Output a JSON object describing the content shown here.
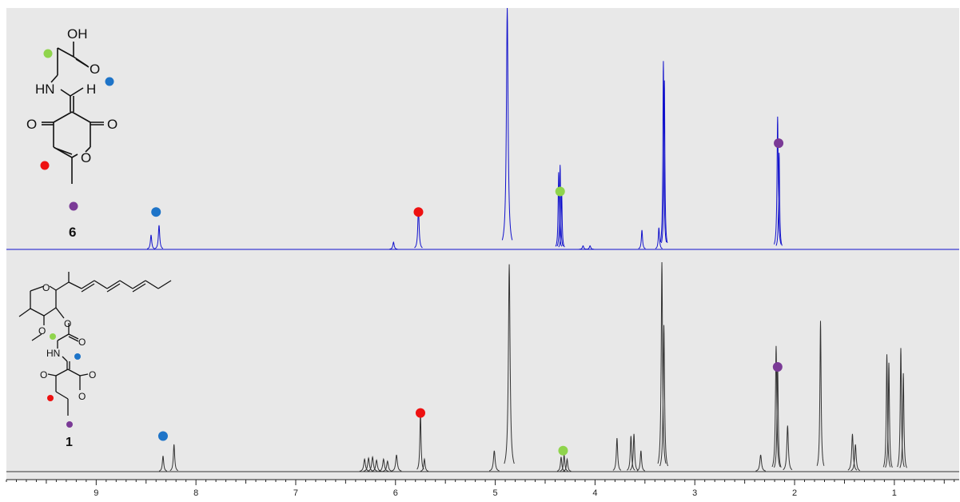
{
  "chart_data": {
    "type": "line",
    "x_axis": {
      "reversed": true,
      "range": [
        9.9,
        0.35
      ],
      "ticks": [
        9,
        8,
        7,
        6,
        5,
        4,
        3,
        2,
        1
      ],
      "tick_labels": [
        "9",
        "8",
        "7",
        "6",
        "5",
        "4",
        "3",
        "2",
        "1"
      ],
      "label": ""
    },
    "grid": false,
    "panels": [
      {
        "compound_label": "6",
        "color": "#1111cc",
        "peaks": [
          {
            "x": 8.45,
            "h": 0.06,
            "w": 0.008
          },
          {
            "x": 8.37,
            "h": 0.1,
            "w": 0.008
          },
          {
            "x": 6.02,
            "h": 0.03,
            "w": 0.008
          },
          {
            "x": 5.77,
            "h": 0.17,
            "w": 0.008
          },
          {
            "x": 4.88,
            "h": 1.0,
            "w": 0.01
          },
          {
            "x": 4.365,
            "h": 0.32,
            "w": 0.006
          },
          {
            "x": 4.35,
            "h": 0.35,
            "w": 0.006
          },
          {
            "x": 4.335,
            "h": 0.25,
            "w": 0.006
          },
          {
            "x": 3.53,
            "h": 0.08,
            "w": 0.007
          },
          {
            "x": 3.36,
            "h": 0.09,
            "w": 0.007
          },
          {
            "x": 3.315,
            "h": 0.78,
            "w": 0.006
          },
          {
            "x": 3.305,
            "h": 0.7,
            "w": 0.006
          },
          {
            "x": 2.17,
            "h": 0.55,
            "w": 0.007
          },
          {
            "x": 2.155,
            "h": 0.4,
            "w": 0.006
          },
          {
            "x": 4.12,
            "h": 0.015,
            "w": 0.008
          },
          {
            "x": 4.05,
            "h": 0.015,
            "w": 0.008
          }
        ],
        "markers": [
          {
            "x": 8.4,
            "level": 0.155,
            "color": "#1e74c8"
          },
          {
            "x": 5.77,
            "level": 0.155,
            "color": "#ee1111"
          },
          {
            "x": 4.35,
            "level": 0.24,
            "color": "#8fd44c"
          },
          {
            "x": 2.16,
            "level": 0.44,
            "color": "#7a3a96"
          }
        ]
      },
      {
        "compound_label": "1",
        "color": "#333333",
        "peaks": [
          {
            "x": 8.33,
            "h": 0.075,
            "w": 0.008
          },
          {
            "x": 8.22,
            "h": 0.13,
            "w": 0.008
          },
          {
            "x": 6.31,
            "h": 0.06,
            "w": 0.01
          },
          {
            "x": 6.27,
            "h": 0.065,
            "w": 0.01
          },
          {
            "x": 6.23,
            "h": 0.07,
            "w": 0.01
          },
          {
            "x": 6.19,
            "h": 0.055,
            "w": 0.01
          },
          {
            "x": 6.12,
            "h": 0.06,
            "w": 0.01
          },
          {
            "x": 6.08,
            "h": 0.05,
            "w": 0.01
          },
          {
            "x": 5.99,
            "h": 0.08,
            "w": 0.01
          },
          {
            "x": 5.75,
            "h": 0.28,
            "w": 0.007
          },
          {
            "x": 5.71,
            "h": 0.06,
            "w": 0.008
          },
          {
            "x": 5.01,
            "h": 0.1,
            "w": 0.01
          },
          {
            "x": 4.86,
            "h": 0.99,
            "w": 0.01
          },
          {
            "x": 4.34,
            "h": 0.07,
            "w": 0.008
          },
          {
            "x": 4.31,
            "h": 0.08,
            "w": 0.008
          },
          {
            "x": 4.28,
            "h": 0.06,
            "w": 0.008
          },
          {
            "x": 3.78,
            "h": 0.16,
            "w": 0.008
          },
          {
            "x": 3.64,
            "h": 0.17,
            "w": 0.008
          },
          {
            "x": 3.61,
            "h": 0.18,
            "w": 0.008
          },
          {
            "x": 3.54,
            "h": 0.1,
            "w": 0.008
          },
          {
            "x": 3.33,
            "h": 1.0,
            "w": 0.008
          },
          {
            "x": 3.31,
            "h": 0.7,
            "w": 0.008
          },
          {
            "x": 2.34,
            "h": 0.08,
            "w": 0.01
          },
          {
            "x": 2.185,
            "h": 0.6,
            "w": 0.008
          },
          {
            "x": 2.17,
            "h": 0.52,
            "w": 0.007
          },
          {
            "x": 2.07,
            "h": 0.22,
            "w": 0.009
          },
          {
            "x": 1.74,
            "h": 0.72,
            "w": 0.007
          },
          {
            "x": 1.42,
            "h": 0.18,
            "w": 0.009
          },
          {
            "x": 1.39,
            "h": 0.13,
            "w": 0.009
          },
          {
            "x": 1.075,
            "h": 0.56,
            "w": 0.007
          },
          {
            "x": 1.055,
            "h": 0.52,
            "w": 0.007
          },
          {
            "x": 0.935,
            "h": 0.59,
            "w": 0.007
          },
          {
            "x": 0.91,
            "h": 0.47,
            "w": 0.007
          }
        ],
        "markers": [
          {
            "x": 8.33,
            "level": 0.17,
            "color": "#1e74c8"
          },
          {
            "x": 5.75,
            "level": 0.28,
            "color": "#ee1111"
          },
          {
            "x": 4.32,
            "level": 0.1,
            "color": "#8fd44c"
          },
          {
            "x": 2.17,
            "level": 0.5,
            "color": "#7a3a96"
          }
        ]
      }
    ],
    "structure_atom_labels": {
      "compound_6": [
        "OH",
        "O",
        "HN",
        "H",
        "O",
        "O",
        "O"
      ],
      "compound_1": [
        "O",
        "O",
        "O",
        "O",
        "HN",
        "O",
        "O",
        "O"
      ]
    }
  }
}
